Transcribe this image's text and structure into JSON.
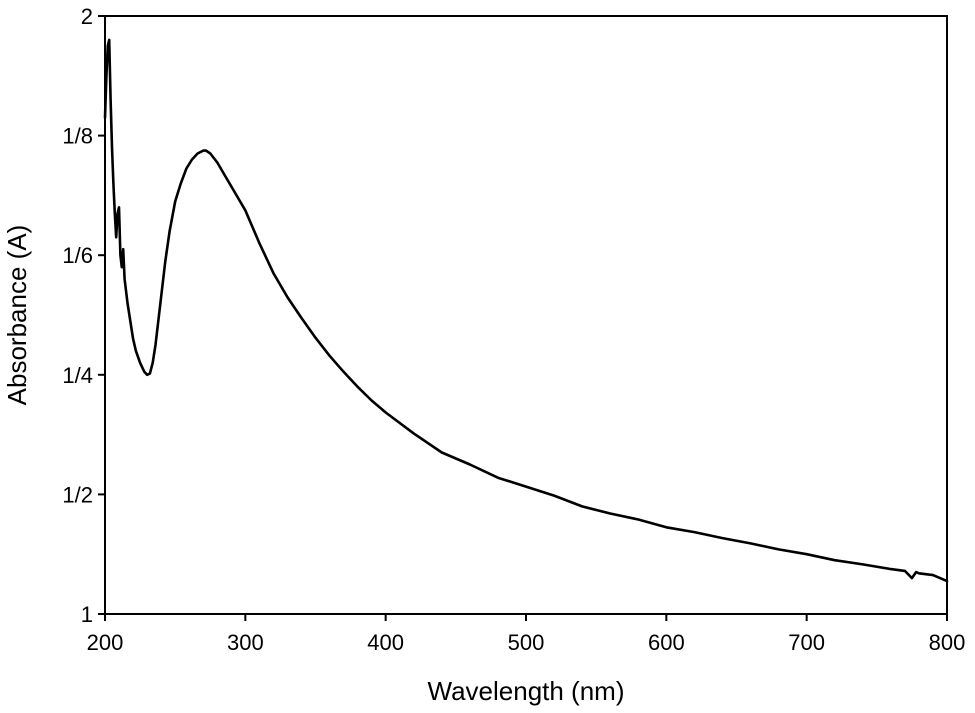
{
  "chart_data": {
    "type": "line",
    "title": "",
    "xlabel": "Wavelength (nm)",
    "ylabel": "Absorbance (A)",
    "xlim": [
      200,
      800
    ],
    "ylim": [
      1,
      2
    ],
    "x_ticks": [
      200,
      300,
      400,
      500,
      600,
      700,
      800
    ],
    "x_tick_labels": [
      "200",
      "300",
      "400",
      "500",
      "600",
      "700",
      "800"
    ],
    "y_ticks": [
      1,
      1.2,
      1.4,
      1.6,
      1.8,
      2
    ],
    "y_tick_labels": [
      "1",
      "1/2",
      "1/4",
      "1/6",
      "1/8",
      "2"
    ],
    "grid": false,
    "legend": "none",
    "line_color": "#000000",
    "series": [
      {
        "x": [
          200,
          201,
          202,
          203,
          204,
          205,
          206,
          207,
          208,
          209,
          210,
          211,
          212,
          213,
          214,
          216,
          218,
          220,
          222,
          225,
          228,
          230,
          232,
          234,
          236,
          238,
          240,
          243,
          246,
          250,
          254,
          258,
          262,
          266,
          270,
          272,
          275,
          280,
          285,
          290,
          295,
          300,
          310,
          320,
          330,
          340,
          350,
          360,
          370,
          380,
          390,
          400,
          420,
          440,
          460,
          480,
          500,
          520,
          540,
          560,
          580,
          600,
          620,
          640,
          660,
          680,
          700,
          720,
          740,
          760,
          770,
          775,
          778,
          780,
          790,
          800
        ],
        "y": [
          1.83,
          1.9,
          1.95,
          1.96,
          1.86,
          1.78,
          1.72,
          1.67,
          1.63,
          1.67,
          1.68,
          1.6,
          1.58,
          1.61,
          1.56,
          1.52,
          1.49,
          1.46,
          1.44,
          1.42,
          1.405,
          1.4,
          1.402,
          1.42,
          1.45,
          1.49,
          1.53,
          1.59,
          1.64,
          1.69,
          1.72,
          1.745,
          1.76,
          1.77,
          1.775,
          1.775,
          1.77,
          1.755,
          1.735,
          1.715,
          1.695,
          1.675,
          1.62,
          1.57,
          1.53,
          1.495,
          1.462,
          1.432,
          1.405,
          1.38,
          1.357,
          1.337,
          1.302,
          1.27,
          1.25,
          1.228,
          1.213,
          1.198,
          1.18,
          1.168,
          1.158,
          1.145,
          1.137,
          1.127,
          1.118,
          1.108,
          1.1,
          1.09,
          1.083,
          1.075,
          1.072,
          1.06,
          1.07,
          1.068,
          1.065,
          1.055
        ]
      }
    ]
  }
}
